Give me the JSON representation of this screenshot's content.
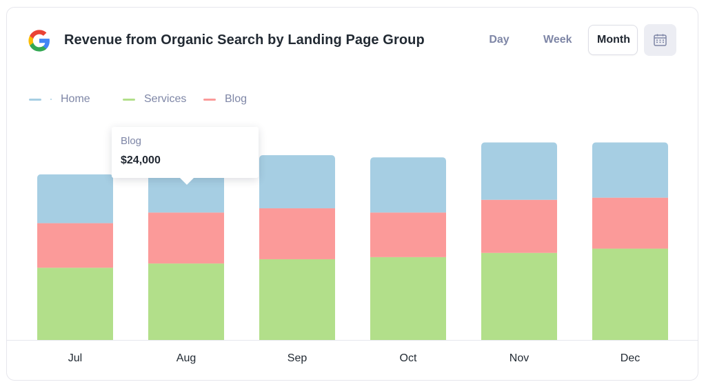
{
  "header": {
    "title": "Revenue from Organic Search by Landing Page Group",
    "logo_icon": "google-logo-icon",
    "periods": [
      "Day",
      "Week",
      "Month"
    ],
    "active_period": "Month",
    "calendar_icon": "calendar-icon"
  },
  "colors": {
    "home": "#a6cee3",
    "services": "#b2df8a",
    "blog": "#fb9a99",
    "text_muted": "#7e86a6",
    "text_dark": "#222a33"
  },
  "tooltip": {
    "series": "Blog",
    "value": "$24,000"
  },
  "chart_data": {
    "type": "bar",
    "stacked": true,
    "categories": [
      "Jul",
      "Aug",
      "Sep",
      "Oct",
      "Nov",
      "Dec"
    ],
    "series": [
      {
        "name": "Services",
        "color": "#b2df8a",
        "values": [
          34,
          36,
          38,
          39,
          41,
          43
        ]
      },
      {
        "name": "Blog",
        "color": "#fb9a99",
        "values": [
          21,
          24,
          24,
          21,
          25,
          24
        ]
      },
      {
        "name": "Home",
        "color": "#a6cee3",
        "values": [
          23,
          25,
          25,
          26,
          27,
          26
        ]
      }
    ],
    "legend_order": [
      "Home",
      "Services",
      "Blog"
    ],
    "ylim": [
      0,
      100
    ],
    "grid": false,
    "legend_position": "top-left",
    "y_axis_shown": false,
    "xlabel": "",
    "ylabel": ""
  }
}
